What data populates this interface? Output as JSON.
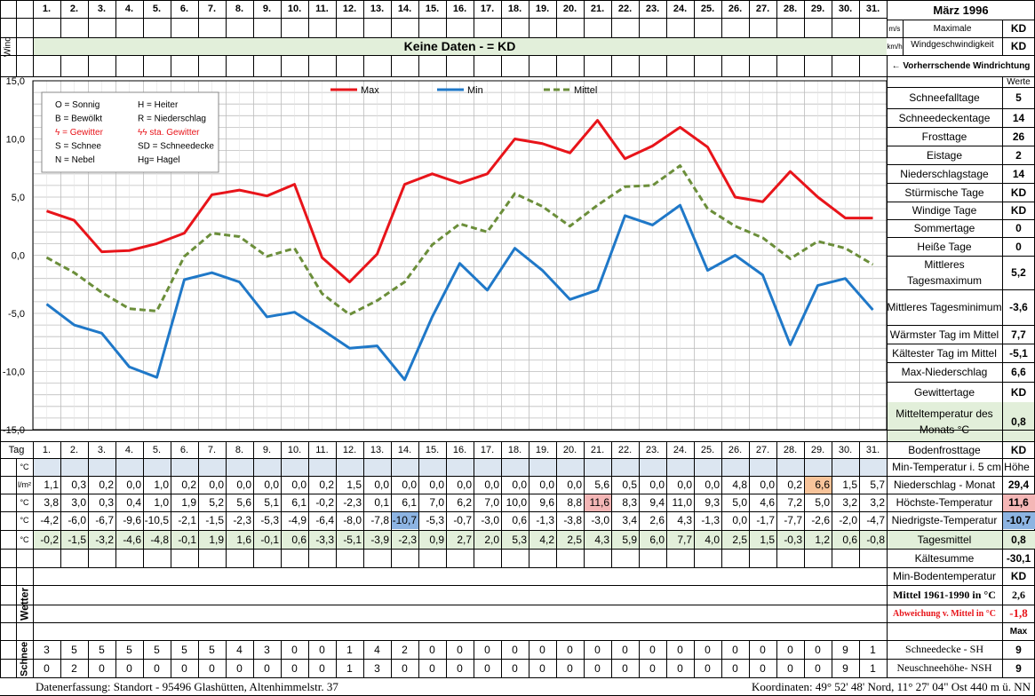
{
  "header": {
    "wind_label": "Wind",
    "days": [
      "1.",
      "2.",
      "3.",
      "4.",
      "5.",
      "6.",
      "7.",
      "8.",
      "9.",
      "10.",
      "11.",
      "12.",
      "13.",
      "14.",
      "15.",
      "16.",
      "17.",
      "18.",
      "19.",
      "20.",
      "21.",
      "22.",
      "23.",
      "24.",
      "25.",
      "26.",
      "27.",
      "28.",
      "29.",
      "30.",
      "31."
    ],
    "month_title": "März 1996",
    "no_data": "Keine Daten -  = KD",
    "unit_ms": "m/s",
    "unit_kmh": "km/h",
    "max_wind_label": "Maximale Windgeschwindigkeit",
    "max_wind_ms": "KD",
    "max_wind_kmh": "KD",
    "prevailing_wind": "← Vorherrschende Windrichtung"
  },
  "legend": {
    "entries": [
      "O = Sonnig",
      "H = Heiter",
      "B = Bewölkt",
      "R = Niederschlag",
      "ϟ = Gewitter",
      "ϟϟ sta. Gewitter",
      "S = Schnee",
      "SD = Schneedecke",
      "N = Nebel",
      "Hg= Hagel"
    ],
    "series_max": "Max",
    "series_min": "Min",
    "series_mittel": "Mittel"
  },
  "colors": {
    "max": "#e8141a",
    "min": "#1f78c8",
    "mittel": "#6b8e3a",
    "grid": "#bdbdbd",
    "green": "#e2efda",
    "blue": "#dce6f1",
    "red_hi": "#f4b6b6",
    "blue_hi": "#8db4e2",
    "orange_hi": "#f8c49a"
  },
  "chart_data": {
    "type": "line",
    "x": [
      1,
      2,
      3,
      4,
      5,
      6,
      7,
      8,
      9,
      10,
      11,
      12,
      13,
      14,
      15,
      16,
      17,
      18,
      19,
      20,
      21,
      22,
      23,
      24,
      25,
      26,
      27,
      28,
      29,
      30,
      31
    ],
    "ylim": [
      -15,
      15
    ],
    "yticks": [
      "15,0",
      "10,0",
      "5,0",
      "0,0",
      "-5,0",
      "-10,0",
      "-15,0"
    ],
    "grid": true,
    "legend_position": "top",
    "series": [
      {
        "name": "Max",
        "values": [
          3.8,
          3.0,
          0.3,
          0.4,
          1.0,
          1.9,
          5.2,
          5.6,
          5.1,
          6.1,
          -0.2,
          -2.3,
          0.1,
          6.1,
          7.0,
          6.2,
          7.0,
          10.0,
          9.6,
          8.8,
          11.6,
          8.3,
          9.4,
          11.0,
          9.3,
          5.0,
          4.6,
          7.2,
          5.0,
          3.2,
          3.2
        ]
      },
      {
        "name": "Min",
        "values": [
          -4.2,
          -6.0,
          -6.7,
          -9.6,
          -10.5,
          -2.1,
          -1.5,
          -2.3,
          -5.3,
          -4.9,
          -6.4,
          -8.0,
          -7.8,
          -10.7,
          -5.3,
          -0.7,
          -3.0,
          0.6,
          -1.3,
          -3.8,
          -3.0,
          3.4,
          2.6,
          4.3,
          -1.3,
          0.0,
          -1.7,
          -7.7,
          -2.6,
          -2.0,
          -4.7
        ]
      },
      {
        "name": "Mittel",
        "values": [
          -0.2,
          -1.5,
          -3.2,
          -4.6,
          -4.8,
          -0.1,
          1.9,
          1.6,
          -0.1,
          0.6,
          -3.3,
          -5.1,
          -3.9,
          -2.3,
          0.9,
          2.7,
          2.0,
          5.3,
          4.2,
          2.5,
          4.3,
          5.9,
          6.0,
          7.7,
          4.0,
          2.5,
          1.5,
          -0.3,
          1.2,
          0.6,
          -0.8
        ]
      }
    ]
  },
  "stats": [
    {
      "label": "Werte",
      "value": ""
    },
    {
      "label": "Schneefalltage",
      "value": "5"
    },
    {
      "label": "Schneedeckentage",
      "value": "14"
    },
    {
      "label": "Frosttage",
      "value": "26"
    },
    {
      "label": "Eistage",
      "value": "2"
    },
    {
      "label": "Niederschlagstage",
      "value": "14"
    },
    {
      "label": "Stürmische Tage",
      "value": "KD"
    },
    {
      "label": "Windige Tage",
      "value": "KD"
    },
    {
      "label": "Sommertage",
      "value": "0"
    },
    {
      "label": "Heiße Tage",
      "value": "0"
    },
    {
      "label": "Mittleres Tagesmaximum",
      "value": "5,2"
    },
    {
      "label": "Mittleres Tagesminimum",
      "value": "-3,6"
    },
    {
      "label": "Wärmster Tag im Mittel",
      "value": "7,7"
    },
    {
      "label": "Kältester Tag im Mittel",
      "value": "-5,1"
    },
    {
      "label": "Max-Niederschlag",
      "value": "6,6"
    },
    {
      "label": "Gewittertage",
      "value": "KD"
    },
    {
      "label": "Mitteltemperatur des Monats °C",
      "value": "0,8"
    },
    {
      "label": "Bodenfrosttage",
      "value": "KD"
    }
  ],
  "table": {
    "tag_label": "Tag",
    "unit_c": "°C",
    "unit_lm": "l/m²",
    "soil_label": "Min-Temperatur i. 5 cm Höhe",
    "precip": [
      "1,1",
      "0,3",
      "0,2",
      "0,0",
      "1,0",
      "0,2",
      "0,0",
      "0,0",
      "0,0",
      "0,0",
      "0,2",
      "1,5",
      "0,0",
      "0,0",
      "0,0",
      "0,0",
      "0,0",
      "0,0",
      "0,0",
      "0,0",
      "5,6",
      "0,5",
      "0,0",
      "0,0",
      "0,0",
      "4,8",
      "0,0",
      "0,2",
      "6,6",
      "1,5",
      "5,7"
    ],
    "tmax": [
      "3,8",
      "3,0",
      "0,3",
      "0,4",
      "1,0",
      "1,9",
      "5,2",
      "5,6",
      "5,1",
      "6,1",
      "-0,2",
      "-2,3",
      "0,1",
      "6,1",
      "7,0",
      "6,2",
      "7,0",
      "10,0",
      "9,6",
      "8,8",
      "11,6",
      "8,3",
      "9,4",
      "11,0",
      "9,3",
      "5,0",
      "4,6",
      "7,2",
      "5,0",
      "3,2",
      "3,2"
    ],
    "tmin": [
      "-4,2",
      "-6,0",
      "-6,7",
      "-9,6",
      "-10,5",
      "-2,1",
      "-1,5",
      "-2,3",
      "-5,3",
      "-4,9",
      "-6,4",
      "-8,0",
      "-7,8",
      "-10,7",
      "-5,3",
      "-0,7",
      "-3,0",
      "0,6",
      "-1,3",
      "-3,8",
      "-3,0",
      "3,4",
      "2,6",
      "4,3",
      "-1,3",
      "0,0",
      "-1,7",
      "-7,7",
      "-2,6",
      "-2,0",
      "-4,7"
    ],
    "tmean": [
      "-0,2",
      "-1,5",
      "-3,2",
      "-4,6",
      "-4,8",
      "-0,1",
      "1,9",
      "1,6",
      "-0,1",
      "0,6",
      "-3,3",
      "-5,1",
      "-3,9",
      "-2,3",
      "0,9",
      "2,7",
      "2,0",
      "5,3",
      "4,2",
      "2,5",
      "4,3",
      "5,9",
      "6,0",
      "7,7",
      "4,0",
      "2,5",
      "1,5",
      "-0,3",
      "1,2",
      "0,6",
      "-0,8"
    ],
    "precip_label": "Niederschlag - Monat",
    "precip_total": "29,4",
    "tmax_label": "Höchste-Temperatur",
    "tmax_value": "11,6",
    "tmin_label": "Niedrigste-Temperatur",
    "tmin_value": "-10,7",
    "tmean_label": "Tagesmittel",
    "tmean_value": "0,8",
    "kaelte_label": "Kältesumme",
    "kaelte_value": "-30,1",
    "minboden_label": "Min-Bodentemperatur",
    "minboden_value": "KD",
    "mittel_label": "Mittel 1961-1990 in °C",
    "mittel_value": "2,6",
    "abw_label": "Abweichung v. Mittel in °C",
    "abw_value": "-1,8",
    "max_label": "Max",
    "wetter_label": "Wetter",
    "schnee_label": "Schnee",
    "sh": [
      "3",
      "5",
      "5",
      "5",
      "5",
      "5",
      "5",
      "4",
      "3",
      "0",
      "0",
      "1",
      "4",
      "2",
      "0",
      "0",
      "0",
      "0",
      "0",
      "0",
      "0",
      "0",
      "0",
      "0",
      "0",
      "0",
      "0",
      "0",
      "0",
      "9",
      "1"
    ],
    "nsh": [
      "0",
      "2",
      "0",
      "0",
      "0",
      "0",
      "0",
      "0",
      "0",
      "0",
      "0",
      "1",
      "3",
      "0",
      "0",
      "0",
      "0",
      "0",
      "0",
      "0",
      "0",
      "0",
      "0",
      "0",
      "0",
      "0",
      "0",
      "0",
      "0",
      "9",
      "1"
    ],
    "sh_label": "Schneedecke -  SH",
    "sh_max": "9",
    "nsh_label": "Neuschneehöhe- NSH",
    "nsh_max": "9"
  },
  "footer": {
    "left": "Datenerfassung:  Standort -   95496  Glashütten, Altenhimmelstr. 37",
    "right": "Koordinaten:  49° 52' 48' Nord,  11° 27' 04\" Ost   440 m ü. NN"
  }
}
